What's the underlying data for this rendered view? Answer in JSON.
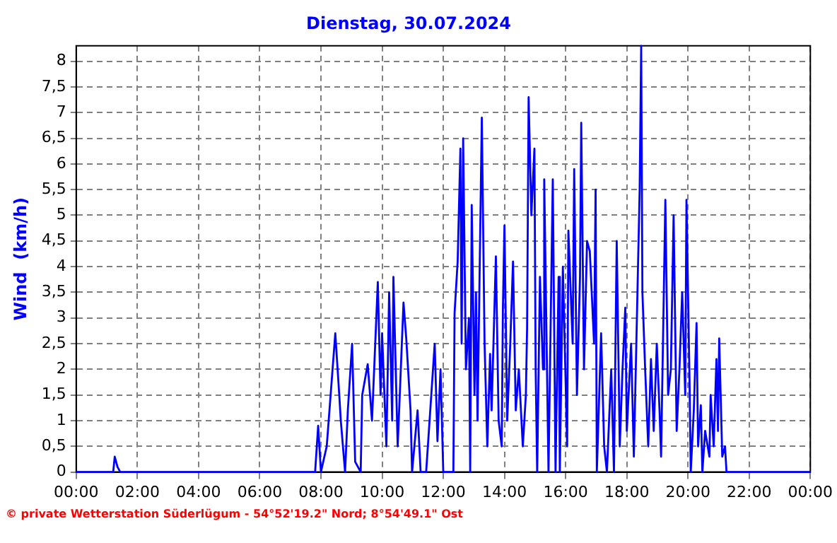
{
  "chart_data": {
    "type": "line",
    "title": "Dienstag, 30.07.2024",
    "ylabel": "Wind  (km/h)",
    "annotations": [
      "© private Wetterstation Süderlügum - 54°52'19.2\" Nord; 8°54'49.1\" Ost"
    ],
    "xlim": [
      0,
      24
    ],
    "xticks": [
      {
        "value": 0,
        "label": "00:00"
      },
      {
        "value": 2,
        "label": "02:00"
      },
      {
        "value": 4,
        "label": "04:00"
      },
      {
        "value": 6,
        "label": "06:00"
      },
      {
        "value": 8,
        "label": "08:00"
      },
      {
        "value": 10,
        "label": "10:00"
      },
      {
        "value": 12,
        "label": "12:00"
      },
      {
        "value": 14,
        "label": "14:00"
      },
      {
        "value": 16,
        "label": "16:00"
      },
      {
        "value": 18,
        "label": "18:00"
      },
      {
        "value": 20,
        "label": "20:00"
      },
      {
        "value": 22,
        "label": "22:00"
      },
      {
        "value": 24,
        "label": "00:00"
      }
    ],
    "ylim": [
      0,
      8.3
    ],
    "yticks": [
      0,
      {
        "value": 0.5,
        "label": "0,5"
      },
      1,
      {
        "value": 1.5,
        "label": "1,5"
      },
      2,
      {
        "value": 2.5,
        "label": "2,5"
      },
      3,
      {
        "value": 3.5,
        "label": "3,5"
      },
      4,
      {
        "value": 4.5,
        "label": "4,5"
      },
      5,
      {
        "value": 5.5,
        "label": "5,5"
      },
      6,
      {
        "value": 6.5,
        "label": "6,5"
      },
      7,
      {
        "value": 7.5,
        "label": "7,5"
      },
      8
    ],
    "grid": true,
    "marker": "none",
    "series": [
      {
        "color": "#0000ff",
        "x": [
          0,
          1.21,
          1.26,
          1.35,
          1.44,
          7.81,
          7.91,
          8.0,
          8.19,
          8.47,
          8.6,
          8.65,
          8.79,
          8.88,
          9.02,
          9.12,
          9.3,
          9.35,
          9.53,
          9.67,
          9.86,
          9.95,
          10.0,
          10.14,
          10.23,
          10.33,
          10.37,
          10.51,
          10.7,
          10.79,
          10.93,
          10.98,
          11.16,
          11.26,
          11.44,
          11.72,
          11.81,
          11.91,
          12.0,
          12.33,
          12.37,
          12.47,
          12.56,
          12.6,
          12.65,
          12.74,
          12.84,
          12.88,
          12.93,
          13.02,
          13.07,
          13.12,
          13.26,
          13.35,
          13.44,
          13.53,
          13.58,
          13.72,
          13.81,
          13.91,
          13.95,
          14.0,
          14.09,
          14.19,
          14.28,
          14.37,
          14.47,
          14.6,
          14.7,
          14.74,
          14.79,
          14.88,
          14.98,
          15.02,
          15.07,
          15.16,
          15.26,
          15.3,
          15.44,
          15.58,
          15.67,
          15.77,
          15.81,
          15.91,
          16.05,
          16.09,
          16.23,
          16.28,
          16.37,
          16.47,
          16.51,
          16.6,
          16.7,
          16.79,
          16.93,
          16.98,
          17.02,
          17.16,
          17.26,
          17.35,
          17.49,
          17.58,
          17.67,
          17.77,
          17.86,
          17.95,
          18.0,
          18.14,
          18.23,
          18.33,
          18.42,
          18.47,
          18.51,
          18.6,
          18.7,
          18.79,
          18.88,
          18.98,
          19.07,
          19.12,
          19.26,
          19.35,
          19.44,
          19.53,
          19.63,
          19.72,
          19.81,
          19.91,
          19.95,
          20.05,
          20.09,
          20.19,
          20.28,
          20.33,
          20.42,
          20.47,
          20.56,
          20.7,
          20.74,
          20.84,
          20.93,
          20.98,
          21.02,
          21.12,
          21.21,
          21.26,
          24
        ],
        "values": [
          0,
          0,
          0.3,
          0.1,
          0,
          0,
          0.9,
          0,
          0.5,
          2.7,
          1.5,
          1.0,
          0,
          1.2,
          2.5,
          0.2,
          0,
          1.5,
          2.1,
          1.0,
          3.7,
          1.5,
          2.7,
          0.5,
          3.5,
          1.0,
          3.8,
          0.5,
          3.3,
          2.6,
          1.2,
          0,
          1.2,
          0,
          0,
          2.5,
          0.6,
          2.0,
          0,
          0,
          3.1,
          4.1,
          6.3,
          2.5,
          6.5,
          2.0,
          3.0,
          0,
          5.2,
          1.5,
          3.5,
          1.0,
          6.9,
          2.5,
          0.5,
          2.3,
          1.2,
          4.2,
          1.0,
          0.5,
          3.2,
          4.8,
          1.0,
          2.5,
          4.1,
          1.2,
          2.0,
          0.5,
          1.5,
          2.8,
          7.3,
          5.0,
          6.3,
          2.0,
          0,
          3.8,
          2.0,
          5.7,
          0,
          5.7,
          0,
          3.8,
          0,
          4.0,
          0.5,
          4.7,
          2.5,
          5.9,
          1.5,
          3.8,
          6.8,
          2.0,
          4.5,
          4.3,
          2.5,
          5.5,
          0,
          2.7,
          0.5,
          0,
          2.0,
          0,
          4.5,
          0.5,
          2.0,
          3.2,
          0.8,
          2.5,
          0.3,
          3.0,
          5.5,
          8.3,
          3.5,
          2.0,
          0.5,
          2.2,
          0.8,
          2.5,
          1.2,
          0.3,
          5.3,
          1.5,
          2.0,
          5.0,
          0.8,
          2.0,
          3.5,
          1.5,
          5.3,
          1.8,
          0,
          1.2,
          2.9,
          0.5,
          1.3,
          0,
          0.8,
          0.3,
          1.5,
          0.5,
          2.2,
          0.8,
          2.6,
          0.3,
          0.5,
          0,
          0
        ]
      }
    ]
  }
}
